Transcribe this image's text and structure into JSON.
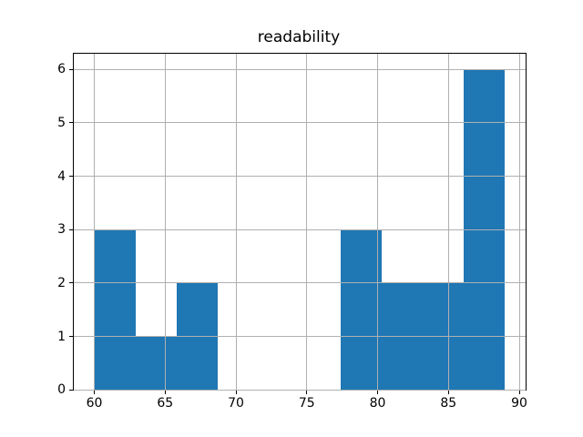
{
  "figure": {
    "background_color": "#ffffff",
    "spine_color": "#000000",
    "text_color": "#000000"
  },
  "chart_data": {
    "type": "bar",
    "subtype": "histogram",
    "title": "readability",
    "xlabel": "",
    "ylabel": "",
    "bin_edges": [
      60,
      62.9,
      65.8,
      68.7,
      71.6,
      74.5,
      77.4,
      80.3,
      83.2,
      86.1,
      89
    ],
    "counts": [
      3,
      1,
      2,
      0,
      0,
      0,
      3,
      2,
      2,
      6
    ],
    "bar_color": "#1f77b4",
    "xlim": [
      58.55,
      90.45
    ],
    "ylim": [
      0,
      6.3
    ],
    "x_ticks": [
      60,
      65,
      70,
      75,
      80,
      85,
      90
    ],
    "y_ticks": [
      0,
      1,
      2,
      3,
      4,
      5,
      6
    ],
    "grid": true,
    "grid_color": "#b0b0b0",
    "legend": null
  }
}
